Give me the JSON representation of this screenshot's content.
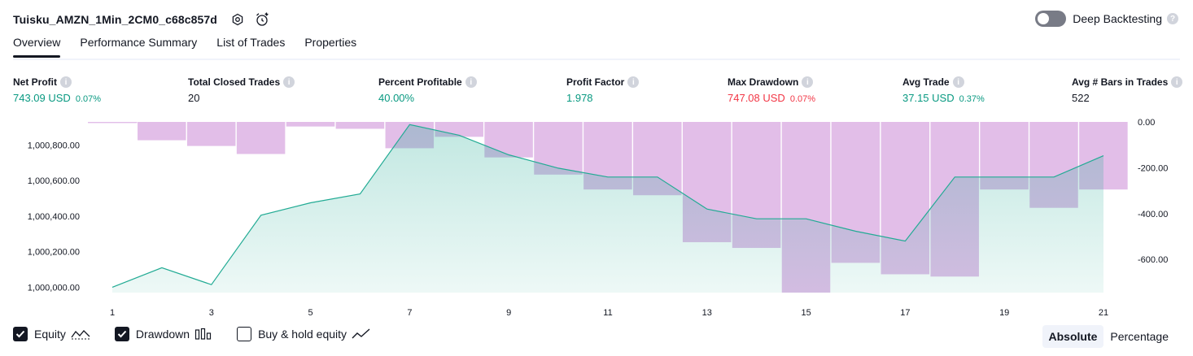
{
  "header": {
    "strategy_name": "Tuisku_AMZN_1Min_2CM0_c68c857d",
    "settings_icon": "settings-icon",
    "alert_icon": "add-alert-icon"
  },
  "deep_backtesting": {
    "label": "Deep Backtesting",
    "enabled": false
  },
  "tabs": [
    {
      "label": "Overview",
      "active": true
    },
    {
      "label": "Performance Summary",
      "active": false
    },
    {
      "label": "List of Trades",
      "active": false
    },
    {
      "label": "Properties",
      "active": false
    }
  ],
  "metrics": [
    {
      "label": "Net Profit",
      "value": "743.09 USD",
      "pct": "0.07%",
      "tone": "pos"
    },
    {
      "label": "Total Closed Trades",
      "value": "20",
      "pct": "",
      "tone": "neutral"
    },
    {
      "label": "Percent Profitable",
      "value": "40.00%",
      "pct": "",
      "tone": "pos"
    },
    {
      "label": "Profit Factor",
      "value": "1.978",
      "pct": "",
      "tone": "pos"
    },
    {
      "label": "Max Drawdown",
      "value": "747.08 USD",
      "pct": "0.07%",
      "tone": "neg"
    },
    {
      "label": "Avg Trade",
      "value": "37.15 USD",
      "pct": "0.37%",
      "tone": "pos"
    },
    {
      "label": "Avg # Bars in Trades",
      "value": "522",
      "pct": "",
      "tone": "neutral"
    }
  ],
  "chart_data": {
    "type": "line",
    "x": [
      1,
      2,
      3,
      4,
      5,
      6,
      7,
      8,
      9,
      10,
      11,
      12,
      13,
      14,
      15,
      16,
      17,
      18,
      19,
      20,
      21
    ],
    "x_ticks": [
      1,
      3,
      5,
      7,
      9,
      11,
      13,
      15,
      17,
      19,
      21
    ],
    "series": [
      {
        "values": [
          1000000,
          1000110,
          1000015,
          1000405,
          1000475,
          1000525,
          1000915,
          1000855,
          1000745,
          1000670,
          1000620,
          1000620,
          1000440,
          1000385,
          1000385,
          1000315,
          1000260,
          1000620,
          1000620,
          1000620,
          1000740
        ],
        "color": "#22ab94",
        "axis": "left"
      },
      {
        "values": [
          -5,
          -80,
          -105,
          -140,
          -20,
          -30,
          -115,
          -65,
          -155,
          -230,
          -295,
          -320,
          -525,
          -550,
          -745,
          -615,
          -665,
          -675,
          -295,
          -375,
          -295
        ],
        "color": "#ce93d8",
        "axis": "right"
      }
    ],
    "left_axis": {
      "ylim": [
        999970,
        1000930
      ],
      "ticks": [
        "1,000,000.00",
        "1,000,200.00",
        "1,000,400.00",
        "1,000,600.00",
        "1,000,800.00"
      ],
      "tick_values": [
        1000000,
        1000200,
        1000400,
        1000600,
        1000800
      ]
    },
    "right_axis": {
      "ylim": [
        -745,
        0
      ],
      "ticks": [
        "0.00",
        "-200.00",
        "-400.00",
        "-600.00"
      ],
      "tick_values": [
        0,
        -200,
        -400,
        -600
      ]
    },
    "grid": false,
    "legend": "bottom-left"
  },
  "legend": [
    {
      "label": "Equity",
      "checked": true,
      "icon": "equity-line-icon"
    },
    {
      "label": "Drawdown",
      "checked": true,
      "icon": "drawdown-bars-icon"
    },
    {
      "label": "Buy & hold equity",
      "checked": false,
      "icon": "buy-hold-line-icon"
    }
  ],
  "mode_buttons": [
    {
      "label": "Absolute",
      "selected": true
    },
    {
      "label": "Percentage",
      "selected": false
    }
  ]
}
